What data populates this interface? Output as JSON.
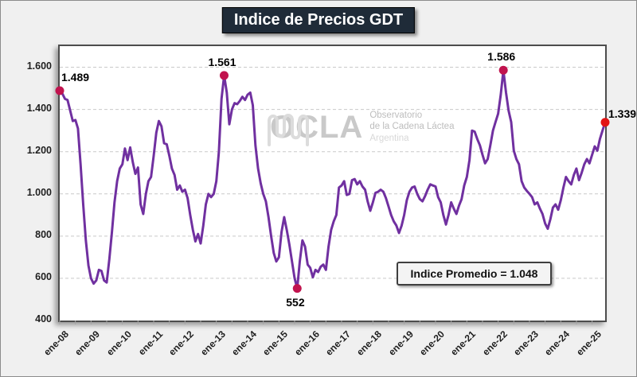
{
  "title": "Indice de Precios GDT",
  "average_box": {
    "text": "Indice Promedio  =  1.048"
  },
  "watermark": {
    "brand": "OCLA",
    "line1": "Observatorio",
    "line2": "de la Cadena Láctea",
    "line3": "Argentina"
  },
  "colors": {
    "page_bg": "#f0f0f0",
    "title_bg": "#1f2b38",
    "line": "#7030a0",
    "marker": "#c1134e",
    "marker_last": "#e21414",
    "gridline": "#c9c9c9",
    "tick": "#a6a6a6"
  },
  "chart_data": {
    "type": "line",
    "title": "Indice de Precios GDT",
    "ylabel": "",
    "xlabel": "",
    "y_axis": {
      "min": 400,
      "max": 1700,
      "major_unit": 200,
      "grid": "dashed-horizontal"
    },
    "y_tick_labels": [
      {
        "label": "1.600",
        "value": 1600
      },
      {
        "label": "1.400",
        "value": 1400
      },
      {
        "label": "1.200",
        "value": 1200
      },
      {
        "label": "1.000",
        "value": 1000
      },
      {
        "label": "800",
        "value": 800
      },
      {
        "label": "600",
        "value": 600
      },
      {
        "label": "400",
        "value": 400
      }
    ],
    "x_tick_labels": [
      "ene-08",
      "ene-09",
      "ene-10",
      "ene-11",
      "ene-12",
      "ene-13",
      "ene-14",
      "ene-15",
      "ene-16",
      "ene-17",
      "ene-18",
      "ene-19",
      "ene-20",
      "ene-21",
      "ene-22",
      "ene-23",
      "ene-24",
      "ene-25"
    ],
    "x_major_every_months": 12,
    "x_minor_tick_every_months": 6,
    "series": [
      {
        "name": "Indice de Precios GDT",
        "start": "ene-08",
        "frequency": "monthly",
        "values": [
          1489,
          1475,
          1450,
          1445,
          1395,
          1345,
          1350,
          1310,
          1140,
          950,
          780,
          660,
          600,
          575,
          590,
          640,
          635,
          590,
          580,
          690,
          820,
          960,
          1060,
          1120,
          1140,
          1215,
          1160,
          1220,
          1150,
          1095,
          1125,
          950,
          905,
          1000,
          1060,
          1080,
          1180,
          1290,
          1345,
          1320,
          1240,
          1235,
          1180,
          1120,
          1090,
          1020,
          1040,
          1010,
          1020,
          980,
          900,
          830,
          775,
          810,
          765,
          850,
          950,
          1000,
          985,
          1000,
          1060,
          1200,
          1450,
          1561,
          1480,
          1330,
          1400,
          1430,
          1425,
          1440,
          1460,
          1445,
          1470,
          1480,
          1420,
          1230,
          1120,
          1050,
          1000,
          965,
          890,
          800,
          720,
          680,
          700,
          820,
          890,
          830,
          760,
          680,
          600,
          552,
          680,
          780,
          750,
          665,
          650,
          605,
          640,
          630,
          655,
          665,
          640,
          750,
          830,
          870,
          900,
          1030,
          1040,
          1060,
          995,
          1000,
          1065,
          1070,
          1045,
          1060,
          1035,
          1020,
          965,
          920,
          960,
          1005,
          1010,
          1020,
          1010,
          980,
          940,
          900,
          870,
          850,
          815,
          850,
          900,
          970,
          1010,
          1030,
          1035,
          1000,
          975,
          965,
          990,
          1020,
          1045,
          1040,
          1035,
          985,
          960,
          900,
          855,
          900,
          960,
          930,
          905,
          945,
          975,
          1040,
          1080,
          1160,
          1300,
          1295,
          1260,
          1230,
          1185,
          1145,
          1165,
          1230,
          1300,
          1340,
          1380,
          1470,
          1586,
          1480,
          1395,
          1340,
          1204,
          1164,
          1140,
          1060,
          1030,
          1014,
          1000,
          985,
          950,
          960,
          930,
          905,
          860,
          835,
          880,
          935,
          950,
          925,
          970,
          1030,
          1080,
          1060,
          1045,
          1090,
          1120,
          1065,
          1100,
          1140,
          1165,
          1145,
          1185,
          1225,
          1205,
          1260,
          1300,
          1339
        ]
      }
    ],
    "annotations": [
      {
        "label": "1.489",
        "value": 1489,
        "month_index": 0,
        "placement": "above-right",
        "marker": "#c1134e"
      },
      {
        "label": "1.561",
        "value": 1561,
        "month_index": 63,
        "placement": "above",
        "marker": "#c1134e"
      },
      {
        "label": "552",
        "value": 552,
        "month_index": 91,
        "placement": "below",
        "marker": "#c1134e"
      },
      {
        "label": "1.586",
        "value": 1586,
        "month_index": 170,
        "placement": "above",
        "marker": "#c1134e"
      },
      {
        "label": "1.339",
        "value": 1339,
        "month_index": 209,
        "placement": "right",
        "marker": "#e21414"
      }
    ],
    "average_label": "Indice Promedio  =  1.048",
    "average_value": 1048,
    "legend": "none"
  }
}
